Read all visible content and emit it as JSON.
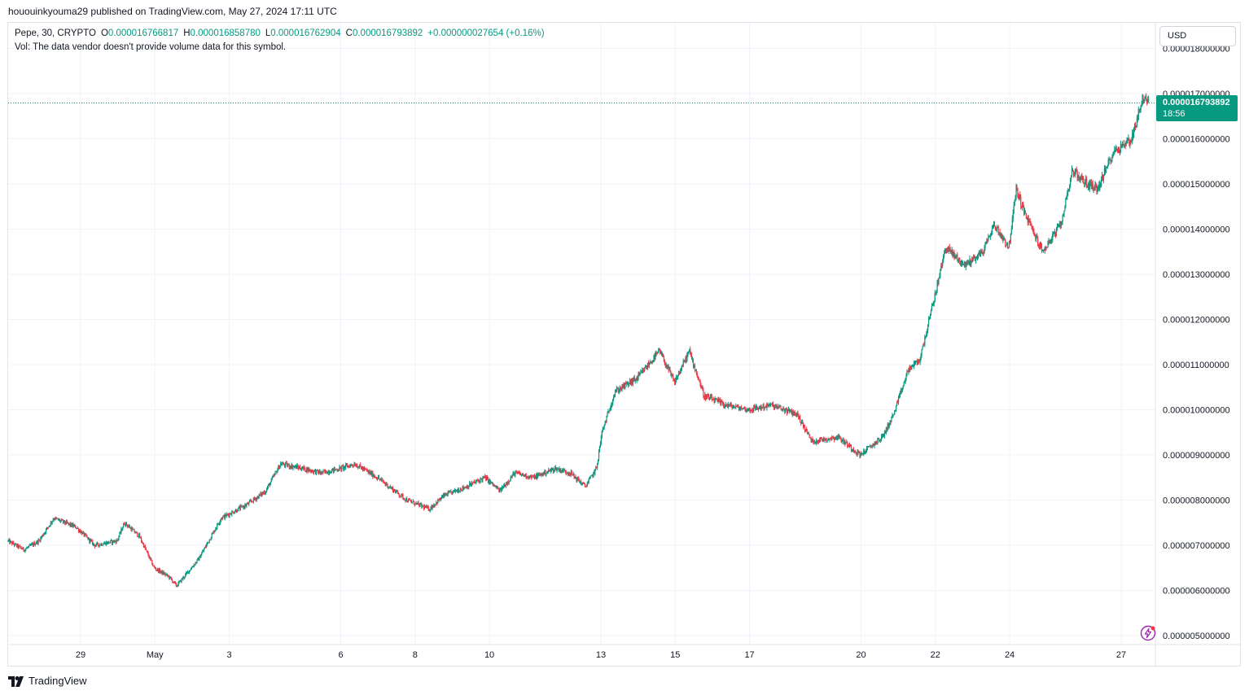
{
  "header": {
    "publisher_text": "hououinkyouma29 published on TradingView.com, May 27, 2024 17:11 UTC"
  },
  "legend": {
    "symbol": "Pepe, 30, CRYPTO",
    "o_label": "O",
    "o_value": "0.000016766817",
    "h_label": "H",
    "h_value": "0.000016858780",
    "l_label": "L",
    "l_value": "0.000016762904",
    "c_label": "C",
    "c_value": "0.000016793892",
    "change": "+0.000000027654 (+0.16%)",
    "volume_note": "Vol: The data vendor doesn't provide volume data for this symbol."
  },
  "currency": "USD",
  "last_price": {
    "price": "0.000016793892",
    "countdown": "18:56"
  },
  "footer": {
    "brand": "TradingView"
  },
  "colors": {
    "up": "#089981",
    "down": "#f23645",
    "grid": "#f0f3fa",
    "text": "#131722",
    "border": "#e0e3eb"
  },
  "icons": {
    "bolt": "lightning-bolt-icon",
    "logo": "tradingview-logo-icon"
  },
  "chart_data": {
    "type": "candlestick",
    "symbol": "Pepe, 30, CRYPTO",
    "timeframe": "30",
    "currency": "USD",
    "y_ticks": [
      "0.000018000000",
      "0.000017000000",
      "0.000016000000",
      "0.000015000000",
      "0.000014000000",
      "0.000013000000",
      "0.000012000000",
      "0.000011000000",
      "0.000010000000",
      "0.000009000000",
      "0.000008000000",
      "0.000007000000",
      "0.000006000000",
      "0.000005000000"
    ],
    "ylim": [
      4.7e-06,
      1.82e-05
    ],
    "x_ticks": [
      "29",
      "May",
      "3",
      "6",
      "8",
      "10",
      "13",
      "15",
      "17",
      "20",
      "22",
      "24",
      "27"
    ],
    "x_tick_days": [
      29,
      31,
      33,
      36,
      38,
      40,
      43,
      45,
      47,
      50,
      52,
      54,
      57
    ],
    "x_range_days": [
      27.05,
      57.8
    ],
    "x_unit_note": "",
    "price_path": [
      [
        27.05,
        7.1e-06
      ],
      [
        27.5,
        6.9e-06
      ],
      [
        27.9,
        7.1e-06
      ],
      [
        28.3,
        7.6e-06
      ],
      [
        28.9,
        7.4e-06
      ],
      [
        29.4,
        7e-06
      ],
      [
        30.0,
        7.1e-06
      ],
      [
        30.2,
        7.5e-06
      ],
      [
        30.6,
        7.2e-06
      ],
      [
        31.0,
        6.5e-06
      ],
      [
        31.4,
        6.3e-06
      ],
      [
        31.6,
        6.1e-06
      ],
      [
        32.2,
        6.7e-06
      ],
      [
        32.8,
        7.6e-06
      ],
      [
        33.5,
        7.9e-06
      ],
      [
        34.0,
        8.2e-06
      ],
      [
        34.4,
        8.8e-06
      ],
      [
        35.0,
        8.7e-06
      ],
      [
        35.5,
        8.6e-06
      ],
      [
        36.0,
        8.7e-06
      ],
      [
        36.4,
        8.8e-06
      ],
      [
        37.0,
        8.5e-06
      ],
      [
        37.8,
        8e-06
      ],
      [
        38.4,
        7.8e-06
      ],
      [
        38.8,
        8.1e-06
      ],
      [
        39.4,
        8.3e-06
      ],
      [
        39.9,
        8.5e-06
      ],
      [
        40.3,
        8.2e-06
      ],
      [
        40.7,
        8.6e-06
      ],
      [
        41.2,
        8.5e-06
      ],
      [
        41.8,
        8.7e-06
      ],
      [
        42.2,
        8.6e-06
      ],
      [
        42.6,
        8.3e-06
      ],
      [
        42.9,
        8.7e-06
      ],
      [
        43.05,
        9.5e-06
      ],
      [
        43.4,
        1.04e-05
      ],
      [
        44.0,
        1.07e-05
      ],
      [
        44.6,
        1.13e-05
      ],
      [
        45.0,
        1.06e-05
      ],
      [
        45.4,
        1.13e-05
      ],
      [
        45.8,
        1.03e-05
      ],
      [
        46.4,
        1.01e-05
      ],
      [
        47.0,
        1e-05
      ],
      [
        47.6,
        1.01e-05
      ],
      [
        48.3,
        9.9e-06
      ],
      [
        48.7,
        9.3e-06
      ],
      [
        49.4,
        9.4e-06
      ],
      [
        50.0,
        9e-06
      ],
      [
        50.6,
        9.4e-06
      ],
      [
        50.9,
        9.9e-06
      ],
      [
        51.3,
        1.09e-05
      ],
      [
        51.6,
        1.11e-05
      ],
      [
        51.8,
        1.18e-05
      ],
      [
        52.0,
        1.25e-05
      ],
      [
        52.3,
        1.36e-05
      ],
      [
        52.8,
        1.32e-05
      ],
      [
        53.3,
        1.35e-05
      ],
      [
        53.6,
        1.41e-05
      ],
      [
        54.0,
        1.36e-05
      ],
      [
        54.2,
        1.49e-05
      ],
      [
        54.4,
        1.44e-05
      ],
      [
        54.9,
        1.35e-05
      ],
      [
        55.4,
        1.41e-05
      ],
      [
        55.7,
        1.53e-05
      ],
      [
        56.1,
        1.5e-05
      ],
      [
        56.4,
        1.49e-05
      ],
      [
        56.8,
        1.57e-05
      ],
      [
        57.3,
        1.6e-05
      ],
      [
        57.6,
        1.69e-05
      ],
      [
        57.75,
        1.68e-05
      ]
    ],
    "last_price": 1.6793892e-05
  }
}
